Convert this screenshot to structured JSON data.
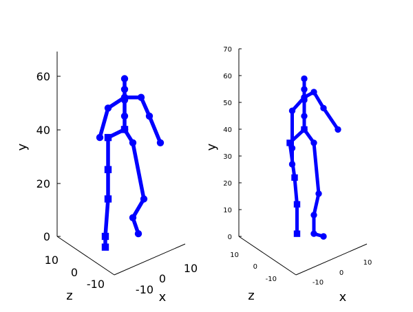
{
  "chart_data": [
    {
      "type": "scatter",
      "view": "3d-skeleton",
      "xlabel": "x",
      "ylabel": "y",
      "zlabel": "z",
      "xlim": [
        -20,
        20
      ],
      "ylim": [
        0,
        70
      ],
      "zlim": [
        -15,
        15
      ],
      "y_ticks": [
        0,
        20,
        40,
        60
      ],
      "x_ticks": [
        -10,
        0,
        10
      ],
      "z_ticks": [
        -10,
        0,
        10
      ],
      "marker_color": "#0000ff",
      "frames": [
        {
          "series": [
            {
              "name": "spine",
              "marker": "circle",
              "points": [
                [
                  0,
                  59,
                  0
                ],
                [
                  0,
                  55,
                  0
                ],
                [
                  0,
                  51,
                  0
                ],
                [
                  0,
                  45,
                  0
                ],
                [
                  0,
                  40,
                  0
                ]
              ]
            },
            {
              "name": "left-arm",
              "marker": "circle",
              "points": [
                [
                  0,
                  52,
                  0
                ],
                [
                  -6,
                  48,
                  0
                ],
                [
                  -9,
                  37,
                  0
                ]
              ]
            },
            {
              "name": "right-arm",
              "marker": "circle",
              "points": [
                [
                  0,
                  52,
                  0
                ],
                [
                  6,
                  52,
                  0
                ],
                [
                  9,
                  45,
                  0
                ],
                [
                  13,
                  35,
                  0
                ]
              ]
            },
            {
              "name": "left-leg",
              "marker": "square",
              "points": [
                [
                  0,
                  40,
                  0
                ],
                [
                  -6,
                  37,
                  0
                ],
                [
                  -6,
                  25,
                  0
                ],
                [
                  -6,
                  14,
                  0
                ],
                [
                  -7,
                  0,
                  0
                ],
                [
                  -7,
                  -4,
                  0
                ]
              ]
            },
            {
              "name": "right-leg",
              "marker": "circle",
              "points": [
                [
                  0,
                  40,
                  0
                ],
                [
                  3,
                  35,
                  0
                ],
                [
                  7,
                  14,
                  0
                ],
                [
                  3,
                  7,
                  0
                ],
                [
                  5,
                  1,
                  0
                ]
              ]
            }
          ]
        },
        {
          "series": [
            {
              "name": "spine",
              "marker": "circle",
              "points": [
                [
                  0,
                  59,
                  0
                ],
                [
                  0,
                  55,
                  0
                ],
                [
                  0,
                  51,
                  0
                ],
                [
                  0,
                  45,
                  0
                ],
                [
                  0,
                  40,
                  0
                ]
              ]
            },
            {
              "name": "left-arm",
              "marker": "circle",
              "points": [
                [
                  0,
                  52,
                  0
                ],
                [
                  -5,
                  47,
                  0
                ],
                [
                  -5,
                  33,
                  0
                ],
                [
                  -5,
                  27,
                  0
                ]
              ]
            },
            {
              "name": "right-arm",
              "marker": "circle",
              "points": [
                [
                  0,
                  52,
                  0
                ],
                [
                  4,
                  54,
                  0
                ],
                [
                  8,
                  48,
                  0
                ],
                [
                  14,
                  40,
                  0
                ]
              ]
            },
            {
              "name": "left-leg",
              "marker": "square",
              "points": [
                [
                  0,
                  40,
                  0
                ],
                [
                  -6,
                  35,
                  0
                ],
                [
                  -4,
                  22,
                  0
                ],
                [
                  -3,
                  12,
                  0
                ],
                [
                  -3,
                  1,
                  0
                ]
              ]
            },
            {
              "name": "right-leg",
              "marker": "circle",
              "points": [
                [
                  0,
                  40,
                  0
                ],
                [
                  4,
                  35,
                  0
                ],
                [
                  6,
                  16,
                  0
                ],
                [
                  4,
                  8,
                  0
                ],
                [
                  4,
                  1,
                  0
                ],
                [
                  8,
                  0,
                  0
                ]
              ]
            }
          ]
        }
      ]
    }
  ]
}
